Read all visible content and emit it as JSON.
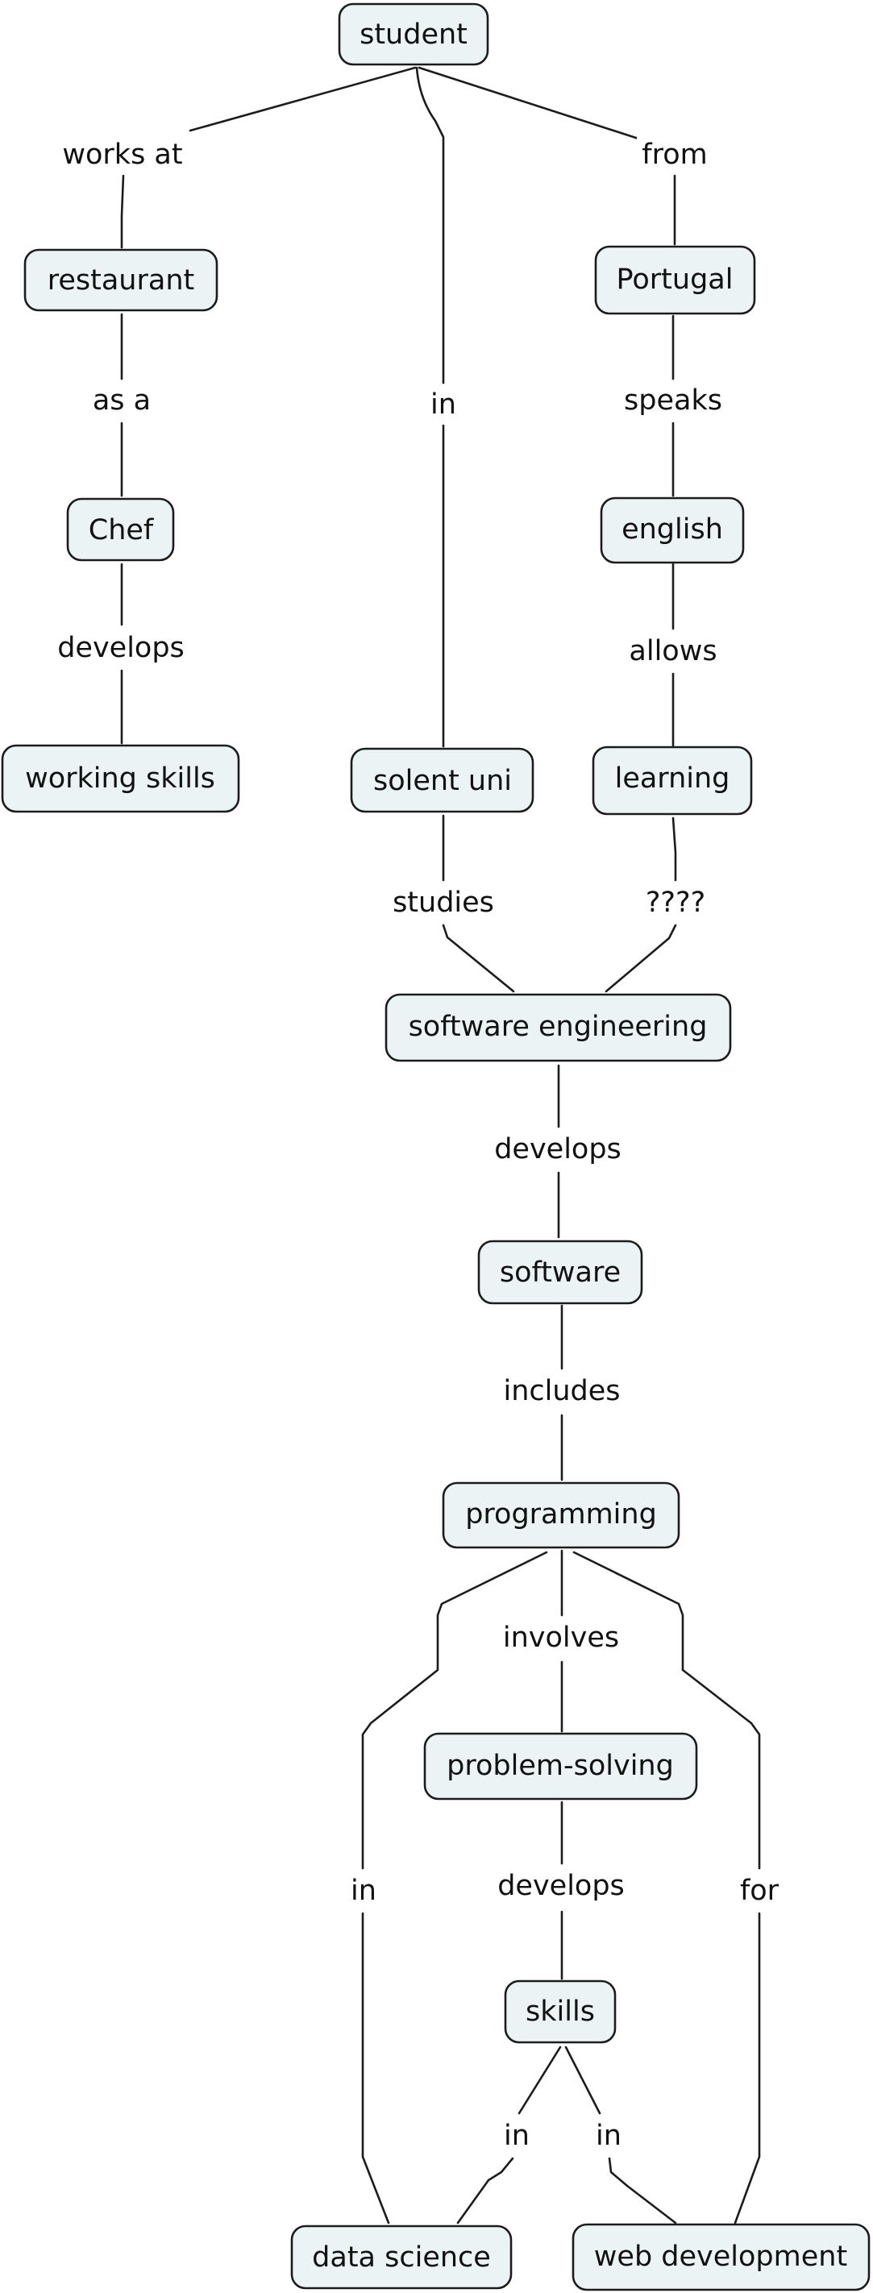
{
  "concept_map": {
    "nodes": {
      "student": "student",
      "restaurant": "restaurant",
      "portugal": "Portugal",
      "chef": "Chef",
      "english": "english",
      "working_skills": "working skills",
      "solent_uni": "solent uni",
      "learning": "learning",
      "software_engineering": "software engineering",
      "software": "software",
      "programming": "programming",
      "problem_solving": "problem-solving",
      "skills": "skills",
      "data_science": "data science",
      "web_development": "web development"
    },
    "links": {
      "works_at": "works at",
      "from": "from",
      "in_uni": "in",
      "as_a": "as a",
      "speaks": "speaks",
      "develops_skills": "develops",
      "allows": "allows",
      "studies": "studies",
      "unknown": "????",
      "develops_software": "develops",
      "includes": "includes",
      "involves": "involves",
      "in_data_science": "in",
      "for_web": "for",
      "develops_problem": "develops",
      "in_skills_ds": "in",
      "in_skills_web": "in"
    }
  }
}
